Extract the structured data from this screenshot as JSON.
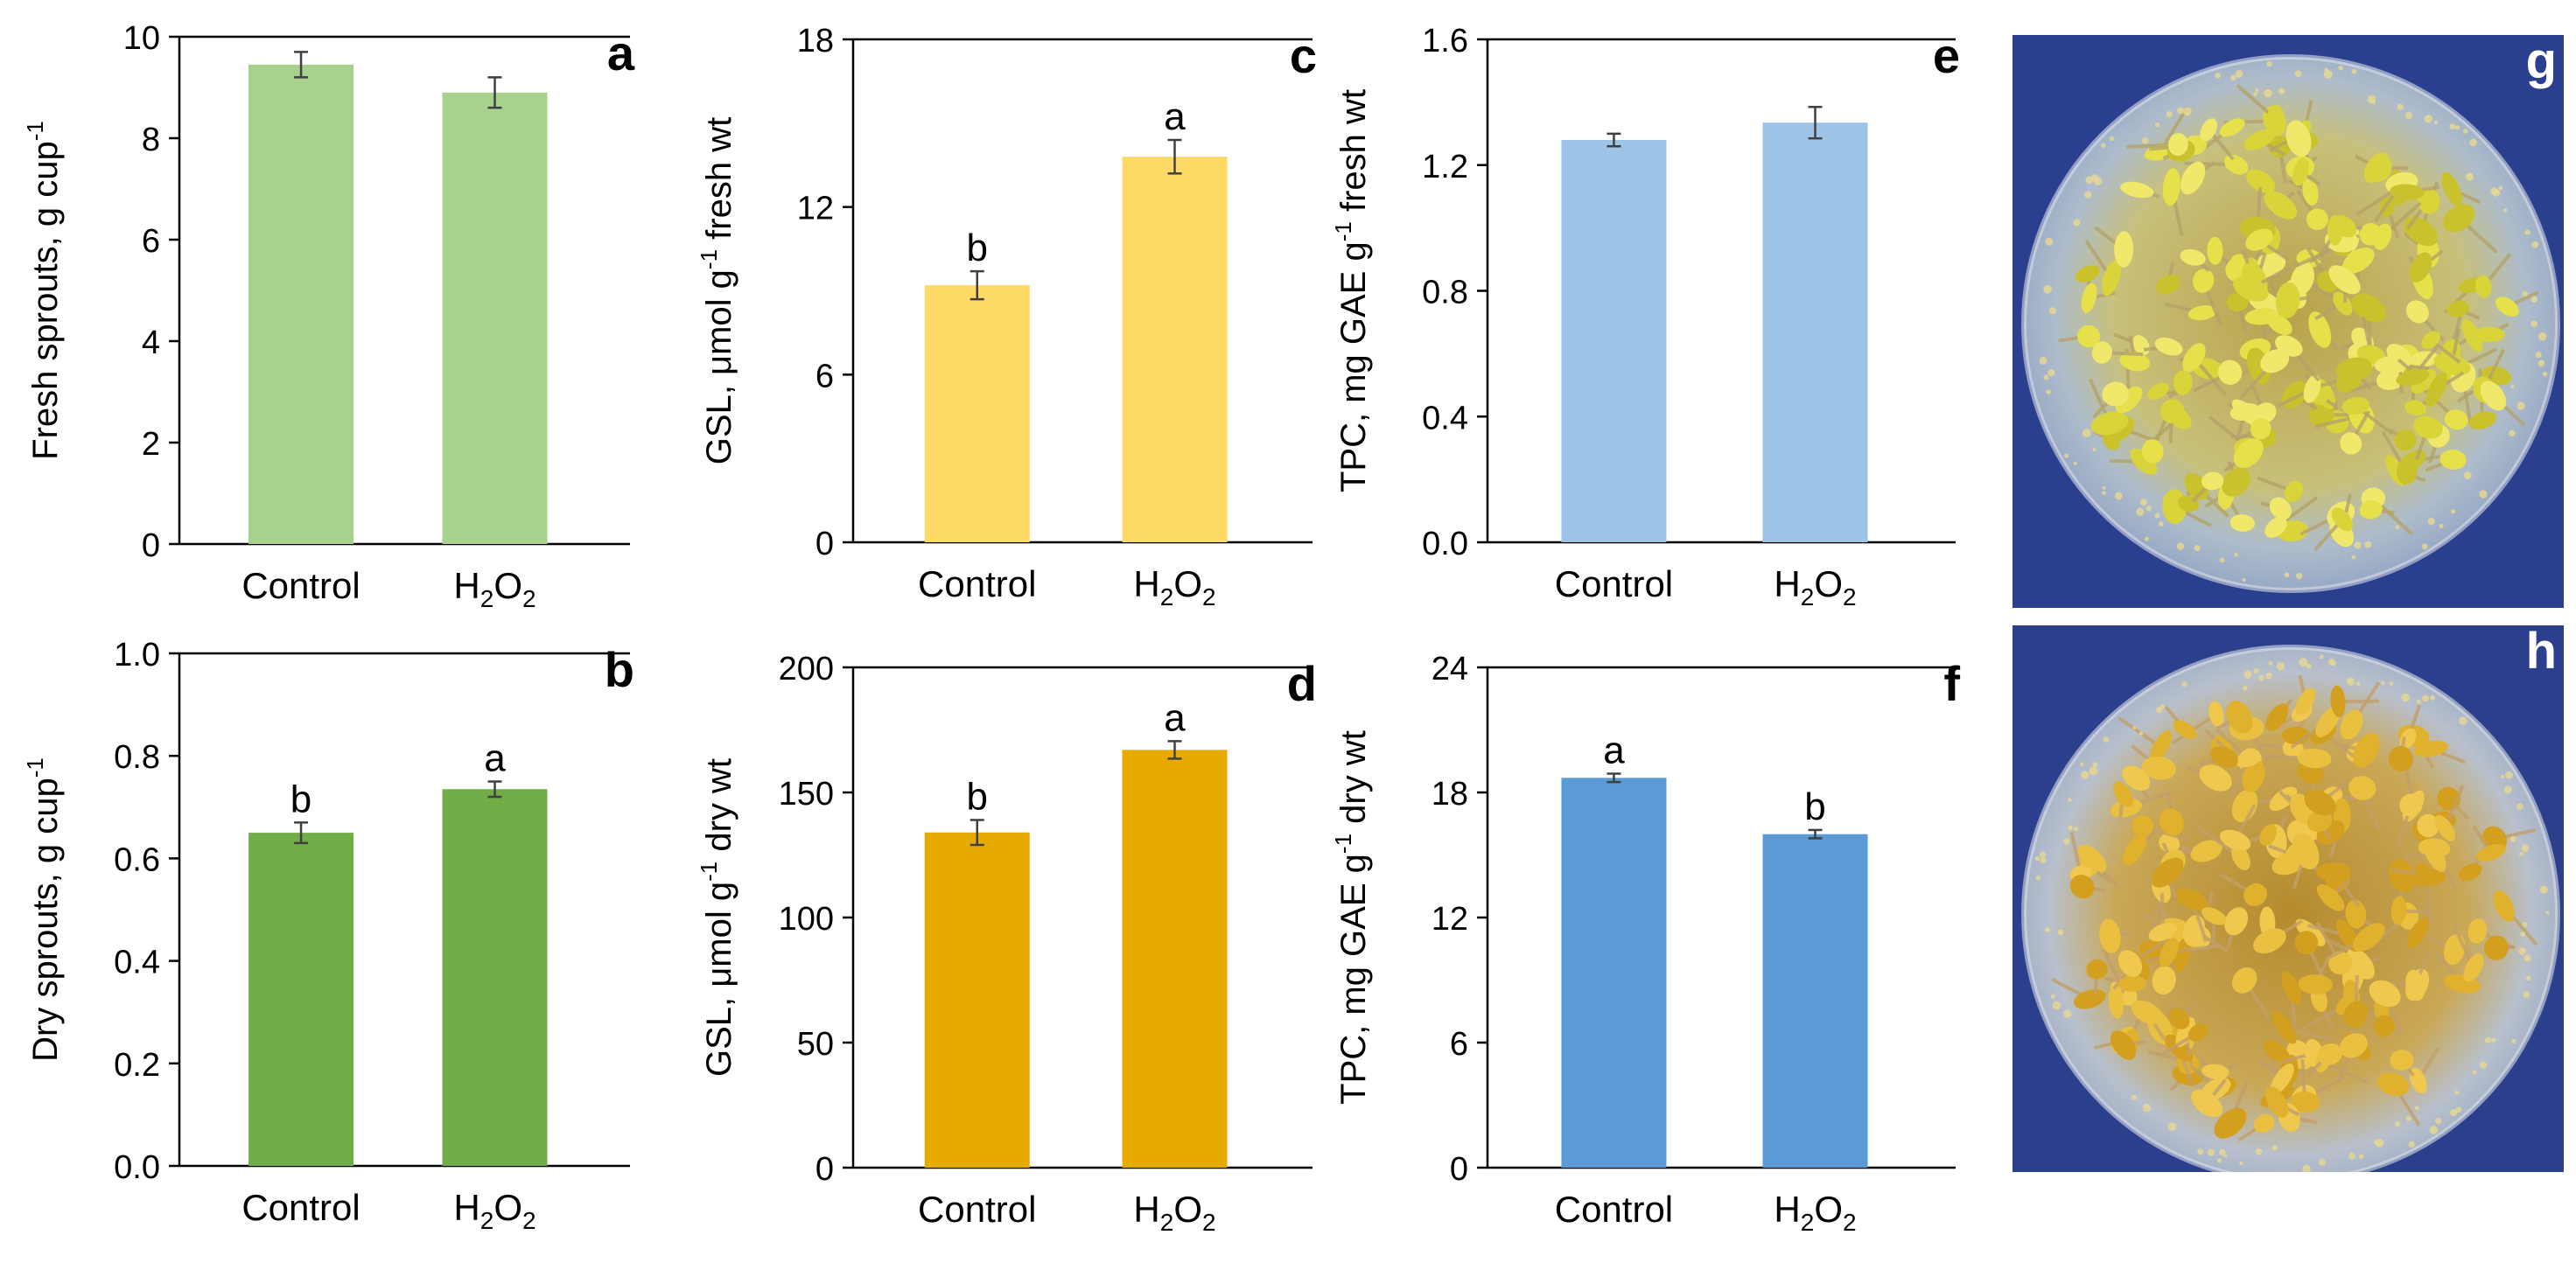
{
  "figure": {
    "photos": [
      {
        "label": "g",
        "description_icon": "sprouts-photo-icon"
      },
      {
        "label": "h",
        "description_icon": "sprouts-photo-icon"
      }
    ]
  },
  "chart_data": [
    {
      "panel": "a",
      "type": "bar",
      "categories": [
        "Control",
        "H2O2"
      ],
      "values": [
        9.45,
        8.9
      ],
      "errors": [
        0.25,
        0.3
      ],
      "letters": [
        "",
        ""
      ],
      "ylabel": "Fresh sprouts, g cup",
      "ylabel_sup": "-1",
      "ylim": [
        0,
        10
      ],
      "ticks": [
        0,
        2,
        4,
        6,
        8,
        10
      ],
      "tick_labels": [
        "0",
        "2",
        "4",
        "6",
        "8",
        "10"
      ],
      "color": "#a9d18e",
      "grid": false
    },
    {
      "panel": "b",
      "type": "bar",
      "categories": [
        "Control",
        "H2O2"
      ],
      "values": [
        0.65,
        0.735
      ],
      "errors": [
        0.02,
        0.015
      ],
      "letters": [
        "b",
        "a"
      ],
      "ylabel": "Dry sprouts, g cup",
      "ylabel_sup": "-1",
      "ylim": [
        0,
        1.0
      ],
      "ticks": [
        0,
        0.2,
        0.4,
        0.6,
        0.8,
        1.0
      ],
      "tick_labels": [
        "0.0",
        "0.2",
        "0.4",
        "0.6",
        "0.8",
        "1.0"
      ],
      "color": "#70ad47",
      "grid": false
    },
    {
      "panel": "c",
      "type": "bar",
      "categories": [
        "Control",
        "H2O2"
      ],
      "values": [
        9.2,
        13.8
      ],
      "errors": [
        0.5,
        0.6
      ],
      "letters": [
        "b",
        "a"
      ],
      "ylabel": "GSL, μmol g",
      "ylabel_sup": "-1",
      "ylabel_tail": " fresh wt",
      "ylim": [
        0,
        18
      ],
      "ticks": [
        0,
        6,
        12,
        18
      ],
      "tick_labels": [
        "0",
        "6",
        "12",
        "18"
      ],
      "color": "#ffd966",
      "grid": false
    },
    {
      "panel": "d",
      "type": "bar",
      "categories": [
        "Control",
        "H2O2"
      ],
      "values": [
        134,
        167
      ],
      "errors": [
        5,
        3.5
      ],
      "letters": [
        "b",
        "a"
      ],
      "ylabel": "GSL, μmol g",
      "ylabel_sup": "-1",
      "ylabel_tail": " dry wt",
      "ylim": [
        0,
        200
      ],
      "ticks": [
        0,
        50,
        100,
        150,
        200
      ],
      "tick_labels": [
        "0",
        "50",
        "100",
        "150",
        "200"
      ],
      "color": "#e7ab00",
      "grid": false
    },
    {
      "panel": "e",
      "type": "bar",
      "categories": [
        "Control",
        "H2O2"
      ],
      "values": [
        1.28,
        1.335
      ],
      "errors": [
        0.02,
        0.05
      ],
      "letters": [
        "",
        ""
      ],
      "ylabel": "TPC, mg GAE g",
      "ylabel_sup": "-1",
      "ylabel_tail": " fresh wt",
      "ylim": [
        0,
        1.6
      ],
      "ticks": [
        0,
        0.4,
        0.8,
        1.2,
        1.6
      ],
      "tick_labels": [
        "0.0",
        "0.4",
        "0.8",
        "1.2",
        "1.6"
      ],
      "color": "#9dc3e6",
      "grid": false
    },
    {
      "panel": "f",
      "type": "bar",
      "categories": [
        "Control",
        "H2O2"
      ],
      "values": [
        18.7,
        16.0
      ],
      "errors": [
        0.2,
        0.2
      ],
      "letters": [
        "a",
        "b"
      ],
      "ylabel": "TPC, mg GAE g",
      "ylabel_sup": "-1",
      "ylabel_tail": " dry wt",
      "ylim": [
        0,
        24
      ],
      "ticks": [
        0,
        6,
        12,
        18,
        24
      ],
      "tick_labels": [
        "0",
        "6",
        "12",
        "18",
        "24"
      ],
      "color": "#5b9bd5",
      "grid": false
    }
  ]
}
